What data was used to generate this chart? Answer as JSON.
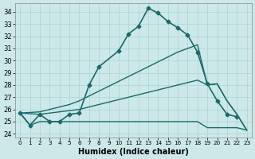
{
  "xlabel": "Humidex (Indice chaleur)",
  "bg_color": "#cce8e8",
  "line_color": "#1a6b6b",
  "grid_color": "#aad4d4",
  "xlim": [
    -0.5,
    23.5
  ],
  "ylim": [
    23.7,
    34.7
  ],
  "yticks": [
    24,
    25,
    26,
    27,
    28,
    29,
    30,
    31,
    32,
    33,
    34
  ],
  "xticks": [
    0,
    1,
    2,
    3,
    4,
    5,
    6,
    7,
    8,
    9,
    10,
    11,
    12,
    13,
    14,
    15,
    16,
    17,
    18,
    19,
    20,
    21,
    22,
    23
  ],
  "series": [
    {
      "x": [
        0,
        1,
        2,
        3,
        4,
        5,
        6,
        7,
        8,
        10,
        11,
        12,
        13,
        14,
        15,
        16,
        17,
        18,
        19,
        20,
        21,
        22
      ],
      "y": [
        25.7,
        24.7,
        25.6,
        25.0,
        25.0,
        25.6,
        25.7,
        28.0,
        29.5,
        30.8,
        32.2,
        32.8,
        34.3,
        33.9,
        33.2,
        32.7,
        32.1,
        30.7,
        28.1,
        26.7,
        25.6,
        25.4
      ],
      "marker": "D",
      "markersize": 2.5,
      "linewidth": 1.2
    },
    {
      "x": [
        0,
        2,
        3,
        4,
        5,
        6,
        7,
        8,
        9,
        10,
        11,
        12,
        13,
        14,
        15,
        16,
        17,
        18,
        19,
        20,
        21,
        22,
        23
      ],
      "y": [
        25.7,
        25.8,
        26.0,
        26.2,
        26.4,
        26.7,
        27.1,
        27.5,
        27.9,
        28.3,
        28.7,
        29.1,
        29.5,
        29.9,
        30.3,
        30.7,
        31.0,
        31.3,
        28.0,
        28.1,
        26.7,
        25.6,
        24.3
      ],
      "marker": null,
      "markersize": 0,
      "linewidth": 1.0
    },
    {
      "x": [
        0,
        2,
        3,
        4,
        5,
        6,
        7,
        8,
        9,
        10,
        11,
        12,
        13,
        14,
        15,
        16,
        17,
        18,
        19,
        20,
        21,
        22,
        23
      ],
      "y": [
        25.7,
        25.6,
        25.7,
        25.8,
        25.9,
        26.0,
        26.2,
        26.4,
        26.6,
        26.8,
        27.0,
        27.2,
        27.4,
        27.6,
        27.8,
        28.0,
        28.2,
        28.4,
        28.0,
        28.1,
        26.7,
        25.6,
        24.3
      ],
      "marker": null,
      "markersize": 0,
      "linewidth": 1.0
    },
    {
      "x": [
        0,
        1,
        2,
        3,
        4,
        5,
        6,
        7,
        8,
        9,
        10,
        11,
        12,
        13,
        14,
        15,
        16,
        17,
        18,
        19,
        20,
        21,
        22,
        23
      ],
      "y": [
        25.7,
        24.7,
        25.0,
        25.0,
        25.0,
        25.0,
        25.0,
        25.0,
        25.0,
        25.0,
        25.0,
        25.0,
        25.0,
        25.0,
        25.0,
        25.0,
        25.0,
        25.0,
        25.0,
        24.5,
        24.5,
        24.5,
        24.5,
        24.3
      ],
      "marker": null,
      "markersize": 0,
      "linewidth": 1.0
    }
  ]
}
